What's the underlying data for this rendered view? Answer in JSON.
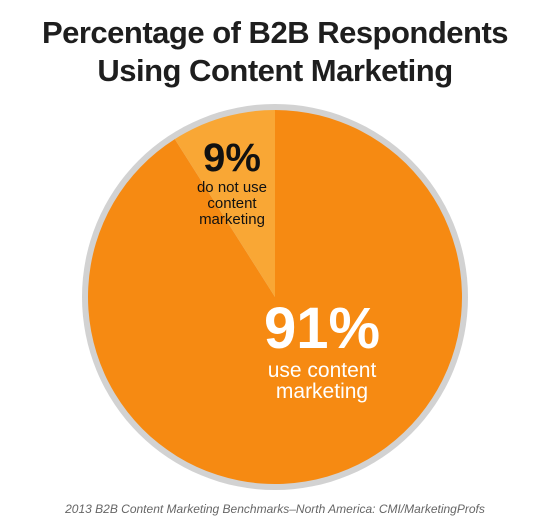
{
  "chart_data": {
    "type": "pie",
    "title": "Percentage of B2B Respondents Using Content Marketing",
    "categories": [
      "use content marketing",
      "do not use content marketing"
    ],
    "values": [
      91,
      9
    ],
    "value_labels": [
      "91%",
      "9%"
    ],
    "colors": [
      "#f68a12",
      "#f9a735"
    ],
    "source": "2013 B2B Content Marketing Benchmarks–North America: CMI/MarketingProfs"
  }
}
